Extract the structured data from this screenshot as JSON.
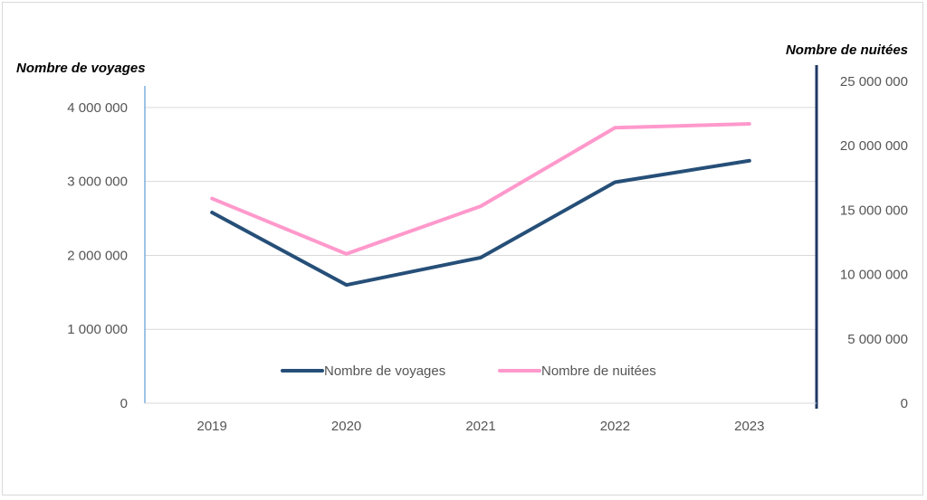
{
  "chart_data": {
    "type": "line",
    "title": "",
    "xlabel": "",
    "ylabel": "Nombre de voyages",
    "y2label": "Nombre de nuitées",
    "categories": [
      "2019",
      "2020",
      "2021",
      "2022",
      "2023"
    ],
    "ylim": [
      0,
      4500000
    ],
    "y2lim": [
      0,
      25000000
    ],
    "yticks": [
      0,
      1000000,
      2000000,
      3000000,
      4000000
    ],
    "ytick_labels": [
      "0",
      "1 000 000",
      "2 000 000",
      "3 000 000",
      "4 000 000"
    ],
    "y2ticks": [
      0,
      5000000,
      10000000,
      15000000,
      20000000,
      25000000
    ],
    "y2tick_labels": [
      "0",
      "5 000 000",
      "10 000 000",
      "15 000 000",
      "20 000 000",
      "25 000 000"
    ],
    "grid": true,
    "legend_position": "bottom-center",
    "series": [
      {
        "name": "Nombre de voyages",
        "axis": "left",
        "color": "#264f78",
        "values": [
          2580000,
          1600000,
          1970000,
          2990000,
          3280000
        ]
      },
      {
        "name": "Nombre de nuitées",
        "axis": "right",
        "color": "#ff99cc",
        "values": [
          15900000,
          11600000,
          15300000,
          21400000,
          21700000
        ]
      }
    ]
  }
}
